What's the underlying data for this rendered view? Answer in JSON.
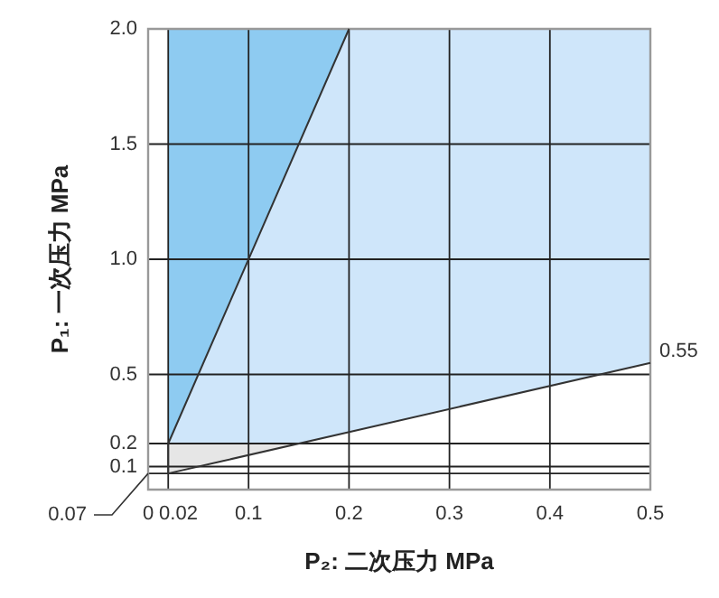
{
  "chart_data": {
    "type": "area",
    "xlabel": "P₂: 二次压力 MPa",
    "ylabel": "P₁: 一次压力 MPa",
    "xlim": [
      0,
      0.5
    ],
    "xticks": [
      0,
      0.02,
      0.1,
      0.2,
      0.3,
      0.4,
      0.5
    ],
    "ylim": [
      0,
      2.0
    ],
    "yticks": [
      {
        "value": 0.07,
        "label": null
      },
      0.1,
      0.2,
      0.5,
      {
        "value": 1,
        "label": "1.0"
      },
      {
        "value": 1.5,
        "label": "1.5"
      },
      {
        "value": 2,
        "label": "2.0"
      }
    ],
    "grid": true,
    "series": [
      {
        "type": "area",
        "color": "#8ecbf1",
        "x": [
          0.02,
          0.02,
          0.2
        ],
        "values": [
          0.2,
          2.0,
          2.0
        ]
      },
      {
        "type": "area",
        "color": "#cfe6fa",
        "x": [
          0.02,
          0.2,
          0.5,
          0.5,
          0.15
        ],
        "values": [
          0.2,
          2.0,
          2.0,
          0.55,
          0.2
        ]
      },
      {
        "color": "#e6e6e6",
        "x": [
          0.02,
          0.02,
          0.15
        ],
        "values": [
          0.07,
          0.2,
          0.2
        ]
      },
      {
        "type": "line",
        "color": "#333333",
        "x": [
          0.2,
          0.02,
          0.02,
          0.5
        ],
        "values": [
          2.0,
          0.2,
          0.07,
          0.55
        ]
      }
    ],
    "annotations": [
      "0.07",
      {
        "text": "0.55",
        "x": 0.5,
        "y": 0.55
      }
    ]
  }
}
